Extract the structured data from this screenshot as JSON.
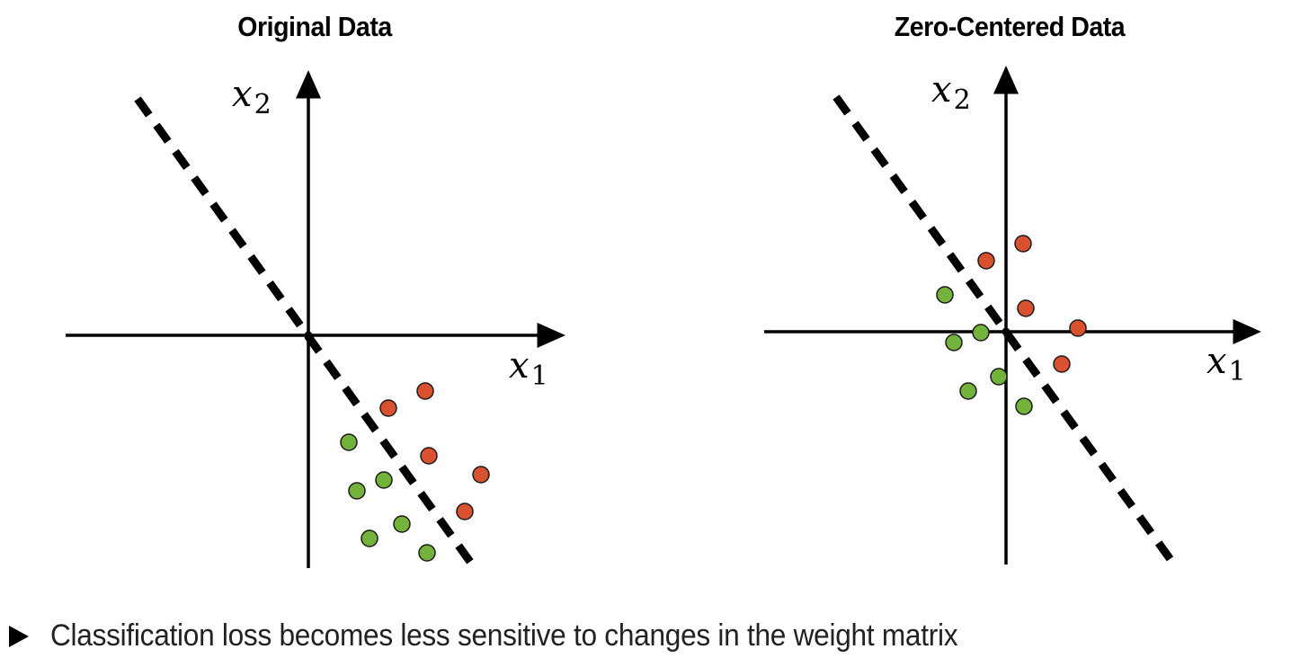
{
  "chart_data": [
    {
      "type": "scatter",
      "title": "Original Data",
      "xlabel": "x",
      "xlabel_sub": "1",
      "ylabel": "x",
      "ylabel_sub": "2",
      "grid": false,
      "decision_boundary": {
        "style": "dashed",
        "from": [
          -19,
          26.3
        ],
        "to": [
          18.5,
          -25.9
        ]
      },
      "series": [
        {
          "name": "class-red",
          "color": "#d9512f",
          "points": [
            [
              13,
              -6.2
            ],
            [
              8.9,
              -8.1
            ],
            [
              13.4,
              -13.4
            ],
            [
              19.2,
              -15.5
            ],
            [
              17.4,
              -19.6
            ]
          ]
        },
        {
          "name": "class-green",
          "color": "#74b33b",
          "points": [
            [
              4.5,
              -11.9
            ],
            [
              5.4,
              -17.3
            ],
            [
              8.4,
              -16.1
            ],
            [
              10.4,
              -21
            ],
            [
              6.8,
              -22.6
            ],
            [
              13.2,
              -24.2
            ]
          ]
        }
      ]
    },
    {
      "type": "scatter",
      "title": "Zero-Centered Data",
      "xlabel": "x",
      "xlabel_sub": "1",
      "ylabel": "x",
      "ylabel_sub": "2",
      "grid": false,
      "decision_boundary": {
        "style": "dashed",
        "from": [
          -18.9,
          26.1
        ],
        "to": [
          18.7,
          -25.9
        ]
      },
      "series": [
        {
          "name": "class-red",
          "color": "#d9512f",
          "points": [
            [
              1.9,
              9.8
            ],
            [
              -2.2,
              7.9
            ],
            [
              2.2,
              2.6
            ],
            [
              8,
              0.4
            ],
            [
              6.2,
              -3.6
            ]
          ]
        },
        {
          "name": "class-green",
          "color": "#74b33b",
          "points": [
            [
              -6.8,
              4.1
            ],
            [
              -2.8,
              -0.1
            ],
            [
              -5.8,
              -1.2
            ],
            [
              -0.8,
              -5
            ],
            [
              -4.2,
              -6.6
            ],
            [
              2,
              -8.3
            ]
          ]
        }
      ]
    }
  ],
  "bullet": {
    "icon": "triangle-right-icon",
    "text": "Classification loss becomes less sensitive to changes in the weight matrix"
  }
}
